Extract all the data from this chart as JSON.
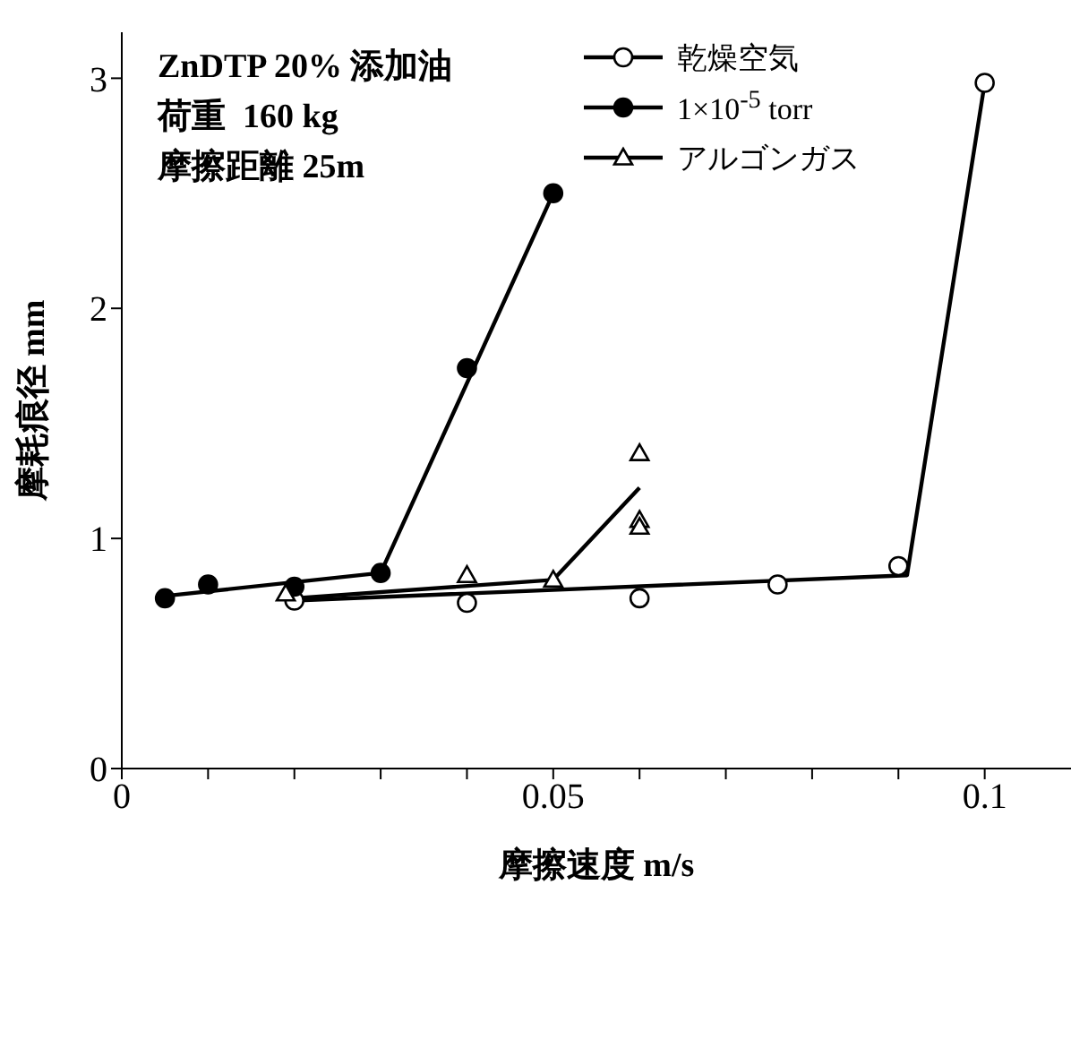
{
  "chart_data": {
    "type": "scatter",
    "xlabel": "摩擦速度 m/s",
    "ylabel": "摩耗痕径 mm",
    "annotations": [
      "ZnDTP 20% 添加油",
      "荷重  160 kg",
      "摩擦距離 25m"
    ],
    "xlim": [
      0,
      0.11
    ],
    "ylim": [
      0,
      3.2
    ],
    "xticks": [
      0,
      {
        "value": 0.01,
        "label": null
      },
      {
        "value": 0.02,
        "label": null
      },
      {
        "value": 0.03,
        "label": null
      },
      {
        "value": 0.04,
        "label": null
      },
      {
        "value": 0.05,
        "label": "0.05"
      },
      {
        "value": 0.06,
        "label": null
      },
      {
        "value": 0.07,
        "label": null
      },
      {
        "value": 0.08,
        "label": null
      },
      {
        "value": 0.09,
        "label": null
      },
      {
        "value": 0.1,
        "label": "0.1"
      }
    ],
    "yticks": [
      0,
      1,
      2,
      3
    ],
    "legend": "top right",
    "series": [
      {
        "name": "乾燥空気",
        "marker": "circle",
        "color": "#ffffff",
        "x": [
          0.02,
          0.04,
          0.06,
          0.076,
          0.09,
          0.1
        ],
        "values": [
          0.73,
          0.72,
          0.74,
          0.8,
          0.88,
          2.98
        ]
      },
      {
        "name": "1×10$^{-5}$ torr",
        "marker": "circle",
        "color": "#000000",
        "x": [
          0.005,
          0.01,
          0.02,
          0.03,
          0.04,
          0.05
        ],
        "values": [
          0.74,
          0.8,
          0.79,
          0.85,
          1.74,
          2.5
        ]
      },
      {
        "name": "アルゴンガス",
        "marker": "triangle",
        "color": "#ffffff",
        "x": [
          0.019,
          0.04,
          0.05,
          0.06,
          0.06,
          0.06
        ],
        "values": [
          0.76,
          0.84,
          0.82,
          1.37,
          1.08,
          1.05
        ]
      },
      {
        "type": "line",
        "color": "#000000",
        "x": [
          0.02,
          0.091,
          0.1
        ],
        "values": [
          0.73,
          0.84,
          2.98
        ]
      },
      {
        "type": "line",
        "color": "#000000",
        "x": [
          0.005,
          0.03,
          0.05
        ],
        "values": [
          0.75,
          0.85,
          2.5
        ]
      },
      {
        "type": "line",
        "color": "#000000",
        "x": [
          0.02,
          0.05,
          0.06
        ],
        "values": [
          0.74,
          0.82,
          1.22
        ]
      }
    ]
  }
}
